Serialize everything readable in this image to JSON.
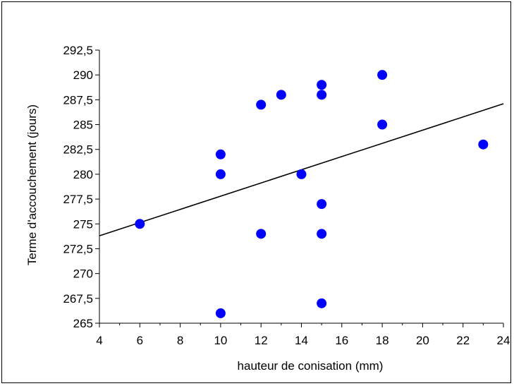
{
  "chart_data": {
    "type": "scatter",
    "title": "",
    "xlabel": "hauteur de conisation (mm)",
    "ylabel": "Terme d'accouchement (jours)",
    "xlim": [
      4,
      24
    ],
    "ylim": [
      265,
      292.5
    ],
    "x_ticks": [
      4,
      6,
      8,
      10,
      12,
      14,
      16,
      18,
      20,
      22,
      24
    ],
    "x_tick_labels": [
      "4",
      "6",
      "8",
      "10",
      "12",
      "14",
      "16",
      "18",
      "20",
      "22",
      "24"
    ],
    "y_ticks": [
      265,
      267.5,
      270,
      272.5,
      275,
      277.5,
      280,
      282.5,
      285,
      287.5,
      290,
      292.5
    ],
    "y_tick_labels": [
      "265",
      "267,5",
      "270",
      "272,5",
      "275",
      "277,5",
      "280",
      "282,5",
      "285",
      "287,5",
      "290",
      "292,5"
    ],
    "grid": false,
    "legend": "none",
    "series": [
      {
        "points": [
          {
            "x": 6,
            "y": 275
          },
          {
            "x": 10,
            "y": 282
          },
          {
            "x": 10,
            "y": 280
          },
          {
            "x": 10,
            "y": 266
          },
          {
            "x": 12,
            "y": 287
          },
          {
            "x": 12,
            "y": 274
          },
          {
            "x": 13,
            "y": 288
          },
          {
            "x": 14,
            "y": 280
          },
          {
            "x": 15,
            "y": 289
          },
          {
            "x": 15,
            "y": 288
          },
          {
            "x": 15,
            "y": 277
          },
          {
            "x": 15,
            "y": 274
          },
          {
            "x": 15,
            "y": 267
          },
          {
            "x": 18,
            "y": 290
          },
          {
            "x": 18,
            "y": 285
          },
          {
            "x": 23,
            "y": 283
          }
        ],
        "color": "#0000ff"
      }
    ],
    "trendline": {
      "type": "linear",
      "start": {
        "x": 4,
        "y": 273.8
      },
      "end": {
        "x": 24,
        "y": 287.1
      },
      "color": "#000000"
    }
  }
}
